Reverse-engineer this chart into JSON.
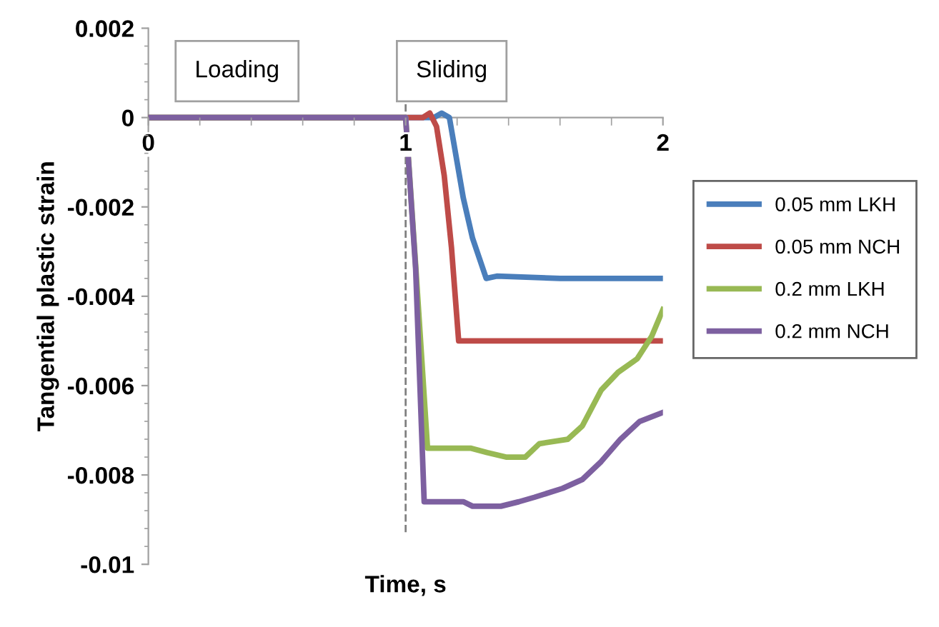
{
  "chart_data": {
    "type": "line",
    "xlabel": "Time, s",
    "ylabel": "Tangential plastic strain",
    "xlim": [
      0,
      2
    ],
    "xticks": [
      0,
      1,
      2
    ],
    "ylim": [
      -0.01,
      0.002
    ],
    "yticks": [
      -0.01,
      -0.008,
      -0.006,
      -0.004,
      -0.002,
      0,
      0.002
    ],
    "grid": false,
    "legend": "right",
    "marker": "none",
    "line_style": "solid",
    "annotations": [
      "Loading",
      "Sliding"
    ],
    "ref_lines": [
      {
        "axis": "x",
        "value": 1,
        "label": null,
        "color": "#808080",
        "line_style": "dashed"
      }
    ],
    "series": [
      {
        "name": "0.05 mm LKH",
        "color": "#4a7ebb",
        "x": [
          0,
          1.0,
          1.11,
          1.14,
          1.17,
          1.224,
          1.26,
          1.313,
          1.354,
          1.6,
          2.0
        ],
        "values": [
          0,
          0,
          0,
          0.0001,
          0,
          -0.0018,
          -0.0027,
          -0.0036,
          -0.00355,
          -0.0036,
          -0.0036
        ]
      },
      {
        "name": "0.05 mm NCH",
        "color": "#be4b48",
        "x": [
          0,
          1.0,
          1.067,
          1.094,
          1.12,
          1.15,
          1.178,
          1.206,
          1.252,
          2.0
        ],
        "values": [
          0,
          0,
          0,
          0.0001,
          -0.0002,
          -0.0013,
          -0.0029,
          -0.005,
          -0.005,
          -0.005
        ]
      },
      {
        "name": "0.2 mm LKH",
        "color": "#98b954",
        "x": [
          0,
          1.0,
          1.04,
          1.085,
          1.252,
          1.317,
          1.39,
          1.465,
          1.52,
          1.63,
          1.687,
          1.76,
          1.826,
          1.9,
          1.956,
          2.0
        ],
        "values": [
          0,
          0,
          -0.0034,
          -0.0074,
          -0.0074,
          -0.0075,
          -0.0076,
          -0.0076,
          -0.0073,
          -0.0072,
          -0.0069,
          -0.0061,
          -0.0057,
          -0.0054,
          -0.0049,
          -0.0043
        ]
      },
      {
        "name": "0.2 mm NCH",
        "color": "#7d60a0",
        "x": [
          0,
          1.0,
          1.039,
          1.072,
          1.224,
          1.26,
          1.37,
          1.44,
          1.5,
          1.61,
          1.687,
          1.76,
          1.835,
          1.91,
          2.0
        ],
        "values": [
          0,
          0,
          -0.0034,
          -0.0086,
          -0.0086,
          -0.0087,
          -0.0087,
          -0.0086,
          -0.0085,
          -0.0083,
          -0.0081,
          -0.0077,
          -0.0072,
          -0.0068,
          -0.0066
        ]
      }
    ]
  }
}
